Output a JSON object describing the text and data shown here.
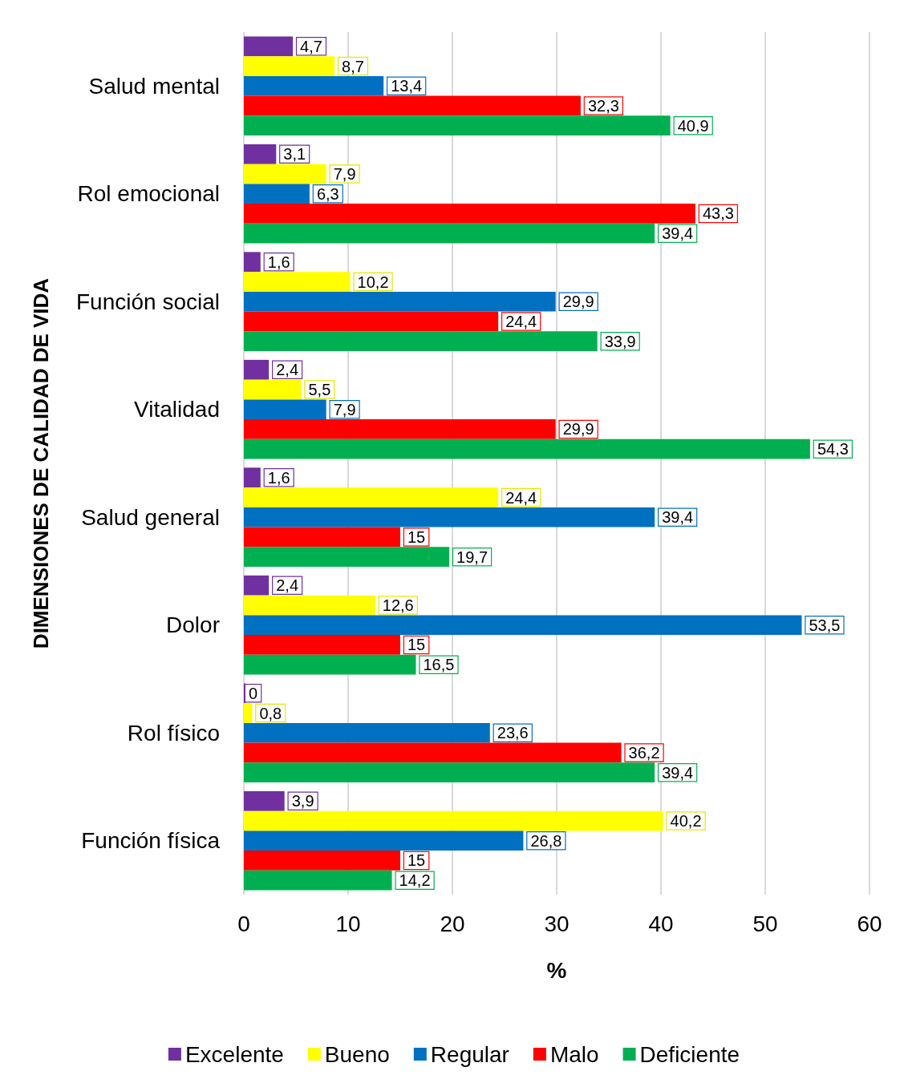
{
  "chart_data": {
    "type": "bar",
    "orientation": "horizontal",
    "categories": [
      "Salud mental",
      "Rol emocional",
      "Función social",
      "Vitalidad",
      "Salud general",
      "Dolor",
      "Rol físico",
      "Función física"
    ],
    "series": [
      {
        "name": "Excelente",
        "color": "#7030a0",
        "values": [
          4.7,
          3.1,
          1.6,
          2.4,
          1.6,
          2.4,
          0,
          3.9
        ],
        "value_labels": [
          "4,7",
          "3,1",
          "1,6",
          "2,4",
          "1,6",
          "2,4",
          "0",
          "3,9"
        ]
      },
      {
        "name": "Bueno",
        "color": "#ffff00",
        "values": [
          8.7,
          7.9,
          10.2,
          5.5,
          24.4,
          12.6,
          0.8,
          40.2
        ],
        "value_labels": [
          "8,7",
          "7,9",
          "10,2",
          "5,5",
          "24,4",
          "12,6",
          "0,8",
          "40,2"
        ]
      },
      {
        "name": "Regular",
        "color": "#0070c0",
        "values": [
          13.4,
          6.3,
          29.9,
          7.9,
          39.4,
          53.5,
          23.6,
          26.8
        ],
        "value_labels": [
          "13,4",
          "6,3",
          "29,9",
          "7,9",
          "39,4",
          "53,5",
          "23,6",
          "26,8"
        ]
      },
      {
        "name": "Malo",
        "color": "#ff0000",
        "values": [
          32.3,
          43.3,
          24.4,
          29.9,
          15,
          15,
          36.2,
          15
        ],
        "value_labels": [
          "32,3",
          "43,3",
          "24,4",
          "29,9",
          "15",
          "15",
          "36,2",
          "15"
        ]
      },
      {
        "name": "Deficiente",
        "color": "#00b050",
        "values": [
          40.9,
          39.4,
          33.9,
          54.3,
          19.7,
          16.5,
          39.4,
          14.2
        ],
        "value_labels": [
          "40,9",
          "39,4",
          "33,9",
          "54,3",
          "19,7",
          "16,5",
          "39,4",
          "14,2"
        ]
      }
    ],
    "xlim": [
      0,
      60
    ],
    "xticks": [
      0,
      10,
      20,
      30,
      40,
      50,
      60
    ],
    "xlabel": "%",
    "ylabel": "DIMENSIONES DE CALIDAD DE VIDA",
    "grid": "x",
    "legend": "bottom"
  }
}
